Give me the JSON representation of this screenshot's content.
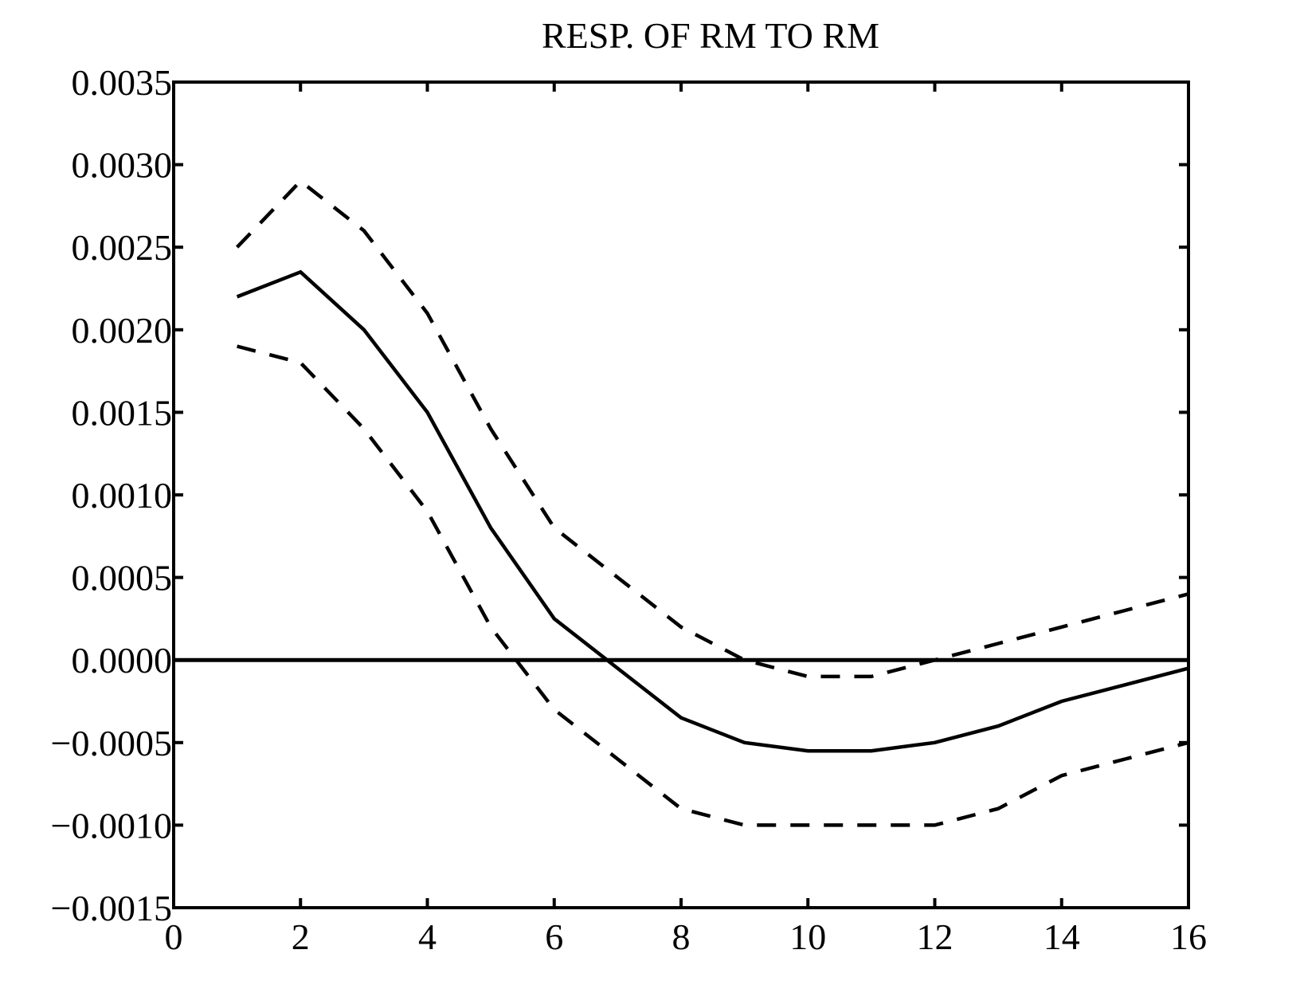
{
  "chart_data": {
    "type": "line",
    "title": "RESP. OF RM TO RM",
    "xlabel": "",
    "ylabel": "",
    "xlim": [
      0,
      16
    ],
    "ylim": [
      -0.0015,
      0.0035
    ],
    "x_ticks": [
      0,
      2,
      4,
      6,
      8,
      10,
      12,
      14,
      16
    ],
    "x_tick_labels": [
      "0",
      "2",
      "4",
      "6",
      "8",
      "10",
      "12",
      "14",
      "16"
    ],
    "y_ticks": [
      0.0035,
      0.003,
      0.0025,
      0.002,
      0.0015,
      0.001,
      0.0005,
      0.0,
      -0.0005,
      -0.001,
      -0.0015
    ],
    "y_tick_labels": [
      "0.0035",
      "0.0030",
      "0.0025",
      "0.0020",
      "0.0015",
      "0.0010",
      "0.0005",
      "0.0000",
      "−0.0005",
      "−0.0010",
      "−0.0015"
    ],
    "grid": false,
    "legend": "none",
    "x": [
      1,
      2,
      3,
      4,
      5,
      6,
      7,
      8,
      9,
      10,
      11,
      12,
      13,
      14,
      15,
      16
    ],
    "series": [
      {
        "style": "solid",
        "values": [
          0.0022,
          0.00235,
          0.002,
          0.0015,
          0.0008,
          0.00025,
          -5e-05,
          -0.00035,
          -0.0005,
          -0.00055,
          -0.00055,
          -0.0005,
          -0.0004,
          -0.00025,
          -0.00015,
          -5e-05
        ]
      },
      {
        "style": "dashed",
        "values": [
          0.0025,
          0.0029,
          0.0026,
          0.0021,
          0.0014,
          0.0008,
          0.0005,
          0.0002,
          0.0,
          -0.0001,
          -0.0001,
          0.0,
          0.0001,
          0.0002,
          0.0003,
          0.0004
        ]
      },
      {
        "style": "dashed",
        "values": [
          0.0019,
          0.0018,
          0.0014,
          0.0009,
          0.0002,
          -0.0003,
          -0.0006,
          -0.0009,
          -0.001,
          -0.001,
          -0.001,
          -0.001,
          -0.0009,
          -0.0007,
          -0.0006,
          -0.0005
        ]
      }
    ],
    "reference_line": 0.0
  }
}
